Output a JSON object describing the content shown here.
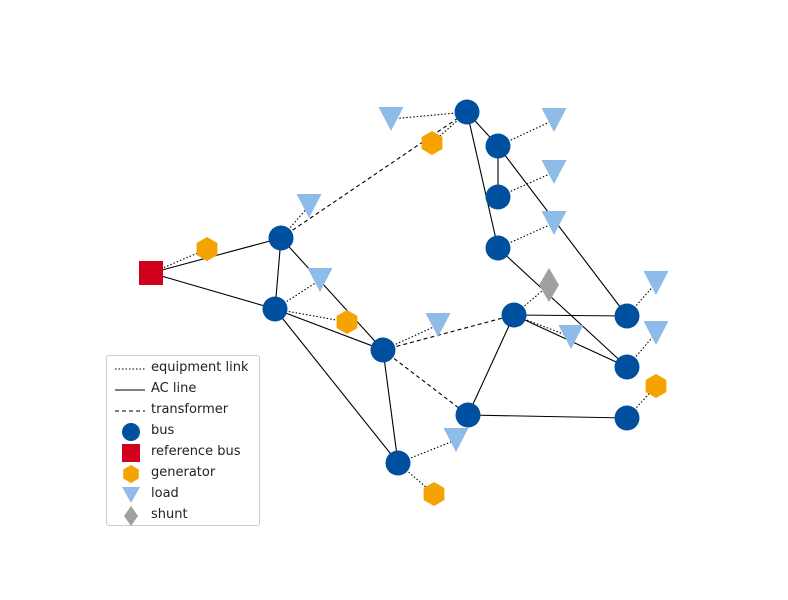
{
  "legend": {
    "placement": "bottom-left",
    "items": [
      {
        "key": "equipment_link",
        "label": "equipment link"
      },
      {
        "key": "ac_line",
        "label": "AC line"
      },
      {
        "key": "transformer",
        "label": "transformer"
      },
      {
        "key": "bus",
        "label": "bus"
      },
      {
        "key": "reference_bus",
        "label": "reference bus"
      },
      {
        "key": "generator",
        "label": "generator"
      },
      {
        "key": "load",
        "label": "load"
      },
      {
        "key": "shunt",
        "label": "shunt"
      }
    ]
  },
  "colors": {
    "bus": "#0050a0",
    "reference_bus": "#d0021b",
    "generator": "#f5a300",
    "load": "#8fbbe8",
    "shunt": "#a0a0a0",
    "edge": "#000000"
  }
}
